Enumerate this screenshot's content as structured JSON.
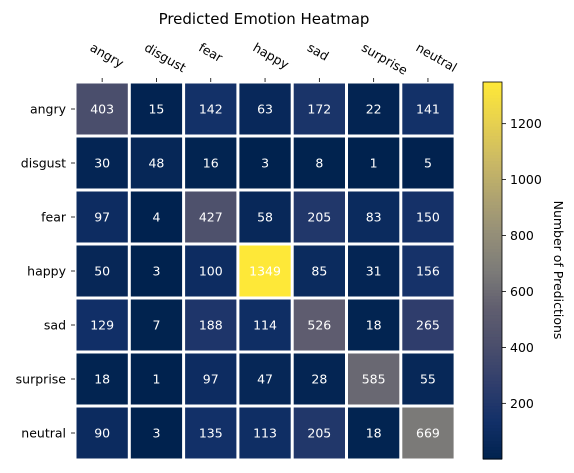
{
  "chart_data": {
    "type": "heatmap",
    "title": "Predicted Emotion Heatmap",
    "x_categories": [
      "angry",
      "disgust",
      "fear",
      "happy",
      "sad",
      "surprise",
      "neutral"
    ],
    "y_categories": [
      "angry",
      "disgust",
      "fear",
      "happy",
      "sad",
      "surprise",
      "neutral"
    ],
    "values": [
      [
        403,
        15,
        142,
        63,
        172,
        22,
        141
      ],
      [
        30,
        48,
        16,
        3,
        8,
        1,
        5
      ],
      [
        97,
        4,
        427,
        58,
        205,
        83,
        150
      ],
      [
        50,
        3,
        100,
        1349,
        85,
        31,
        156
      ],
      [
        129,
        7,
        188,
        114,
        526,
        18,
        265
      ],
      [
        18,
        1,
        97,
        47,
        28,
        585,
        55
      ],
      [
        90,
        3,
        135,
        113,
        205,
        18,
        669
      ]
    ],
    "colormap": "cividis",
    "vmin": 1,
    "vmax": 1349,
    "colorbar": {
      "label": "Number of Predictions",
      "ticks": [
        200,
        400,
        600,
        800,
        1000,
        1200
      ]
    },
    "x_tick_position": "top",
    "grid": false
  }
}
